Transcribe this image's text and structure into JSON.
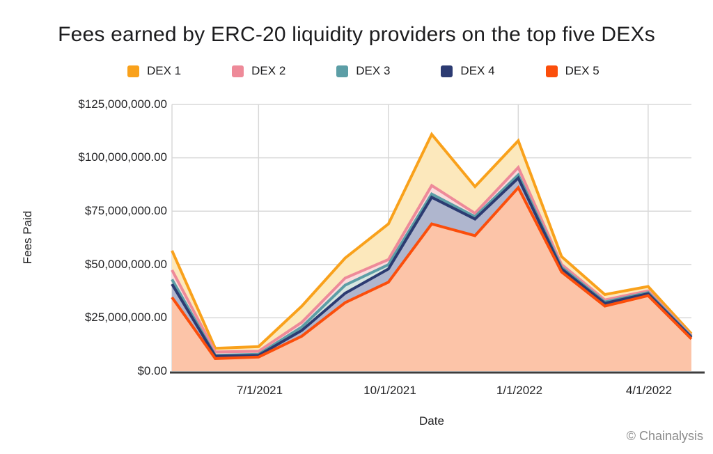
{
  "title": "Fees earned by ERC-20 liquidity providers on the top five DEXs",
  "watermark": "© Chainalysis",
  "chart_data": {
    "type": "area",
    "title": "Fees earned by ERC-20 liquidity providers on the top five DEXs",
    "xlabel": "Date",
    "ylabel": "Fees Paid",
    "legend_position": "top",
    "grid": true,
    "values_unit": "USD millions",
    "ylim": [
      0,
      125
    ],
    "y_gridline_values": [
      25,
      50,
      75,
      100,
      125
    ],
    "y_tick_labels": [
      "$125,000,000.00",
      "$100,000,000.00",
      "$75,000,000.00",
      "$50,000,000.00",
      "$25,000,000.00",
      "$0.00"
    ],
    "x_tick_labels": [
      "7/1/2021",
      "10/1/2021",
      "1/1/2022",
      "4/1/2022"
    ],
    "x_tick_indices": [
      2,
      5,
      8,
      11
    ],
    "dates": [
      "5/1/2021",
      "6/1/2021",
      "7/1/2021",
      "8/1/2021",
      "9/1/2021",
      "10/1/2021",
      "11/1/2021",
      "12/1/2021",
      "1/1/2022",
      "2/1/2022",
      "3/1/2022",
      "4/1/2022",
      "5/1/2022"
    ],
    "series": [
      {
        "name": "DEX 1",
        "color": "#F9A11B",
        "fill": "#FCE8BC",
        "values": [
          56.5,
          10.7,
          11.5,
          30.5,
          53.0,
          69.0,
          111.0,
          86.5,
          108.0,
          53.7,
          35.9,
          39.7,
          17.5
        ]
      },
      {
        "name": "DEX 2",
        "color": "#EE8A99",
        "fill": "#FADCDC",
        "values": [
          47.4,
          9.0,
          9.3,
          22.9,
          43.6,
          52.3,
          87.0,
          74.0,
          95.5,
          50.0,
          33.4,
          37.6,
          16.6
        ]
      },
      {
        "name": "DEX 3",
        "color": "#5C9EA6",
        "fill": "#D7E6E1",
        "values": [
          43.0,
          7.4,
          7.9,
          20.7,
          40.3,
          49.9,
          83.0,
          72.4,
          92.0,
          48.7,
          32.4,
          36.8,
          16.2
        ]
      },
      {
        "name": "DEX 4",
        "color": "#2C3B72",
        "fill": "#AFB6CE",
        "values": [
          40.8,
          7.0,
          7.4,
          19.1,
          36.5,
          47.9,
          81.5,
          71.3,
          90.5,
          47.9,
          31.8,
          36.3,
          15.8
        ]
      },
      {
        "name": "DEX 5",
        "color": "#FB4E0B",
        "fill": "#FCC4A8",
        "values": [
          34.6,
          5.9,
          6.6,
          16.4,
          32.1,
          41.7,
          69.0,
          63.5,
          86.0,
          46.5,
          30.5,
          35.4,
          15.1
        ]
      }
    ],
    "colors": {
      "gridline": "#d8d8d8",
      "axis_line": "#3d3d3d"
    }
  }
}
